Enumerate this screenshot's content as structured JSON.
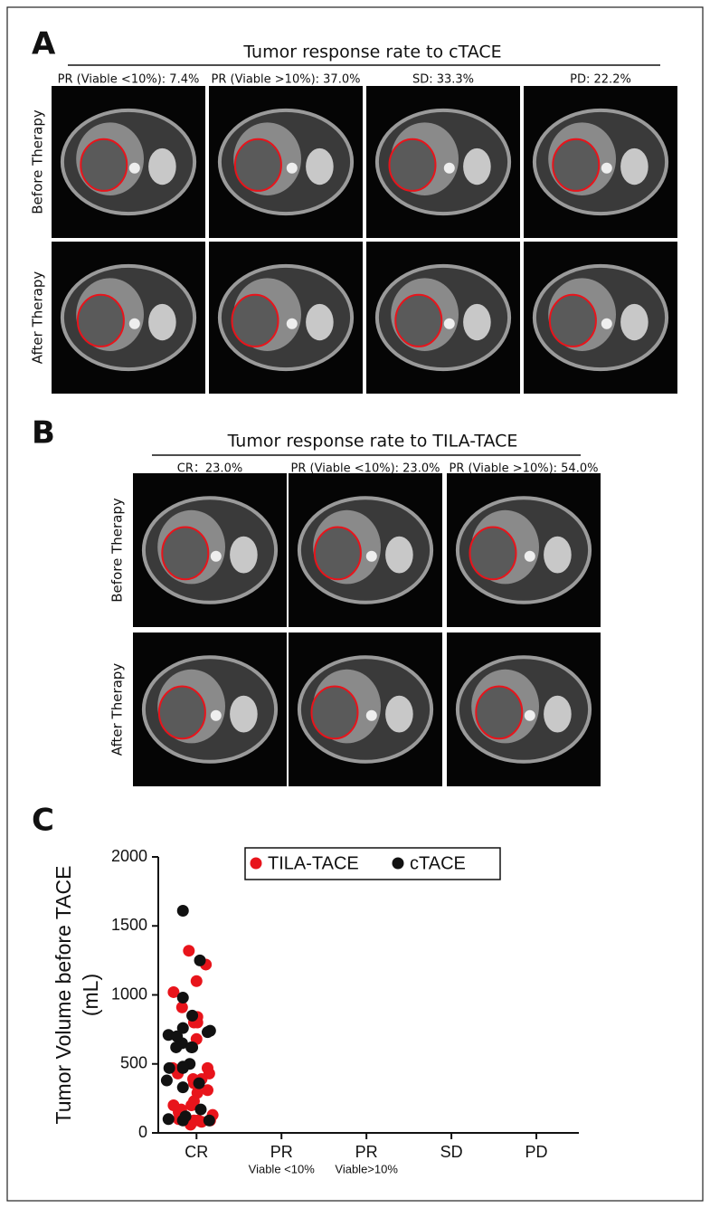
{
  "panel_a": {
    "label": "A",
    "title": "Tumor response rate to cTACE",
    "columns": [
      "PR (Viable <10%): 7.4%",
      "PR (Viable >10%): 37.0%",
      "SD:   33.3%",
      "PD:   22.2%"
    ],
    "rows": [
      "Before Therapy",
      "After Therapy"
    ]
  },
  "panel_b": {
    "label": "B",
    "title": "Tumor response rate to TILA-TACE",
    "columns": [
      "CR：23.0%",
      "PR (Viable <10%): 23.0%",
      "PR (Viable >10%): 54.0%"
    ],
    "rows": [
      "Before Therapy",
      "After Therapy"
    ]
  },
  "panel_c": {
    "label": "C"
  },
  "chart_data": {
    "type": "scatter",
    "ylabel": [
      "Tumor Volume before TACE",
      "(mL)"
    ],
    "xlim": [
      -0.45,
      4.5
    ],
    "xticks": [
      {
        "value": 0,
        "label": "CR"
      },
      {
        "value": 1,
        "label": "PR"
      },
      {
        "value": 2,
        "label": "PR"
      },
      {
        "value": 3,
        "label": "SD"
      },
      {
        "value": 4,
        "label": "PD"
      }
    ],
    "xtick_notes": [
      null,
      "Viable <10%",
      "Viable>10%",
      null,
      null
    ],
    "ylim": [
      0,
      2000
    ],
    "yticks": [
      0,
      500,
      1000,
      1500,
      2000
    ],
    "series": [
      {
        "name": "TILA-TACE",
        "color": "#e8141b",
        "x": [
          -0.18,
          0.02,
          0.19,
          0.01,
          0.01,
          -0.09,
          0.11,
          -0.22,
          0.15,
          -0.03,
          -0.03,
          -0.21,
          -0.03,
          -0.03,
          -0.27,
          0,
          -0.17,
          0.01,
          0,
          0.13,
          -0.28,
          -0.04,
          0.06,
          -0.27,
          -0.06,
          0.13,
          -0.21,
          -0.07,
          0.06,
          0.16
        ],
        "values": [
          170,
          90,
          130,
          290,
          840,
          1320,
          1220,
          430,
          430,
          360,
          230,
          150,
          90,
          800,
          1020,
          1100,
          910,
          800,
          680,
          470,
          470,
          390,
          390,
          200,
          200,
          310,
          100,
          60,
          80,
          90
        ]
      },
      {
        "name": "cTACE",
        "color": "#111111",
        "x": [
          0.04,
          0.15,
          -0.33,
          0.16,
          -0.17,
          -0.32,
          -0.16,
          -0.08,
          -0.33,
          -0.16,
          -0.16,
          -0.16,
          -0.16,
          -0.24,
          -0.06,
          -0.16,
          -0.35,
          -0.16,
          0.03,
          -0.23,
          -0.05,
          -0.05,
          0.13,
          -0.13,
          0.05
        ],
        "values": [
          1250,
          90,
          710,
          740,
          650,
          470,
          470,
          500,
          100,
          90,
          1610,
          980,
          760,
          620,
          620,
          480,
          380,
          330,
          360,
          700,
          850,
          620,
          730,
          120,
          170
        ]
      }
    ]
  }
}
